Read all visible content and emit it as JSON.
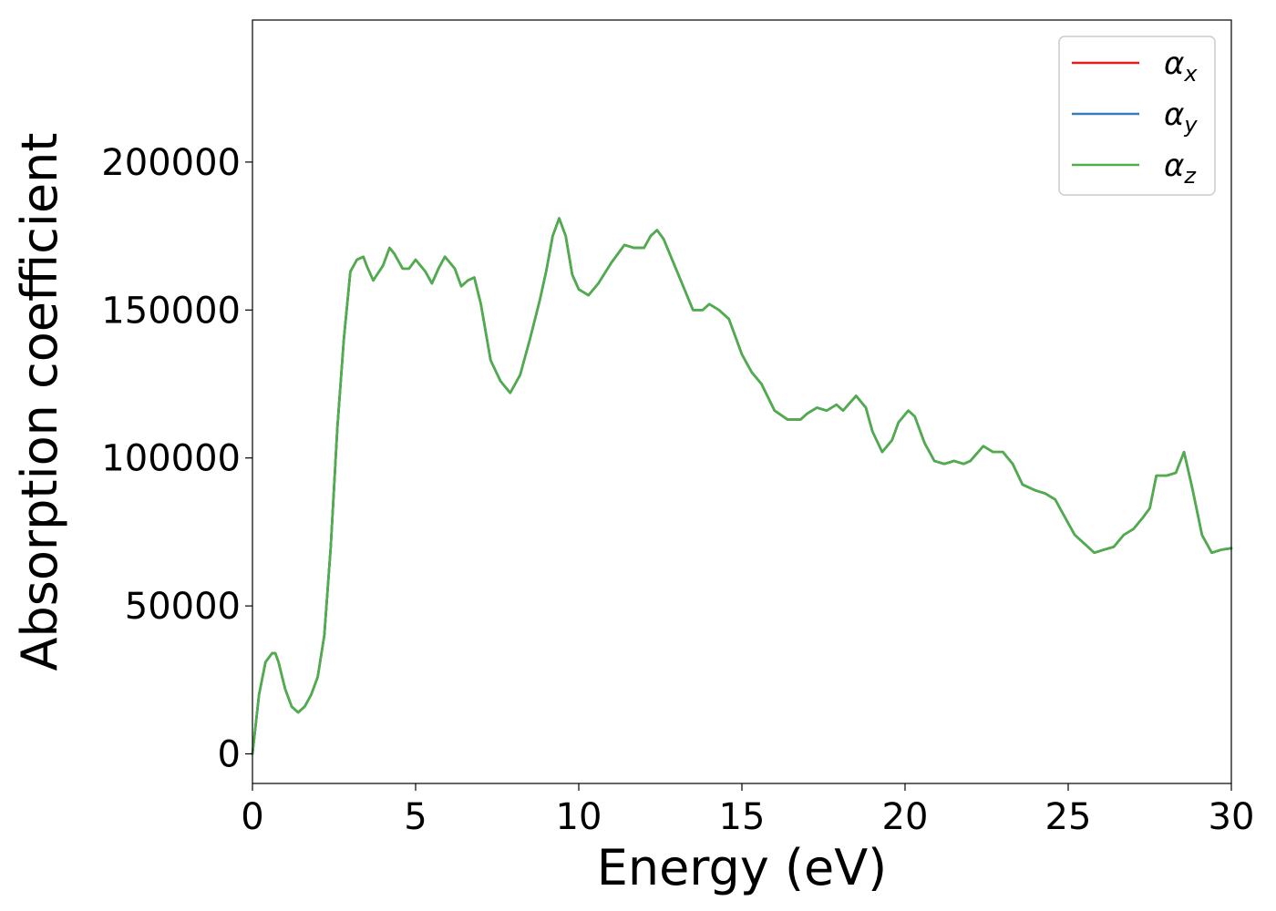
{
  "chart_data": {
    "type": "line",
    "xlabel": "Energy (eV)",
    "ylabel": "Absorption coefficient",
    "xlim": [
      0,
      30
    ],
    "ylim": [
      -10000,
      248000
    ],
    "xticks": [
      0,
      5,
      10,
      15,
      20,
      25,
      30
    ],
    "yticks": [
      0,
      50000,
      100000,
      150000,
      200000
    ],
    "grid": false,
    "legend_position": "top-right",
    "legend": [
      {
        "symbol": "α",
        "sub": "x",
        "color": "#e41a1c"
      },
      {
        "symbol": "α",
        "sub": "y",
        "color": "#377eb8"
      },
      {
        "symbol": "α",
        "sub": "z",
        "color": "#4daf4a"
      }
    ],
    "x": [
      0,
      0.2,
      0.4,
      0.6,
      0.7,
      0.8,
      1.0,
      1.2,
      1.4,
      1.6,
      1.8,
      2.0,
      2.2,
      2.4,
      2.6,
      2.8,
      3.0,
      3.2,
      3.4,
      3.5,
      3.7,
      4.0,
      4.2,
      4.35,
      4.6,
      4.8,
      5.0,
      5.3,
      5.5,
      5.7,
      5.9,
      6.2,
      6.4,
      6.6,
      6.8,
      7.0,
      7.3,
      7.6,
      7.9,
      8.2,
      8.5,
      8.8,
      9.0,
      9.2,
      9.4,
      9.6,
      9.8,
      10.0,
      10.3,
      10.6,
      11.0,
      11.4,
      11.7,
      12.0,
      12.2,
      12.4,
      12.6,
      12.9,
      13.2,
      13.5,
      13.8,
      14.0,
      14.3,
      14.6,
      15.0,
      15.3,
      15.6,
      16.0,
      16.4,
      16.8,
      17.0,
      17.3,
      17.6,
      17.9,
      18.1,
      18.5,
      18.8,
      19.0,
      19.3,
      19.6,
      19.8,
      20.1,
      20.3,
      20.6,
      20.9,
      21.2,
      21.5,
      21.8,
      22.0,
      22.4,
      22.7,
      23.0,
      23.3,
      23.6,
      24.0,
      24.3,
      24.6,
      24.9,
      25.2,
      25.5,
      25.8,
      26.1,
      26.4,
      26.7,
      27.0,
      27.3,
      27.5,
      27.7,
      28.0,
      28.3,
      28.55,
      28.8,
      29.1,
      29.4,
      29.7,
      30.0
    ],
    "series": [
      {
        "values": [
          0,
          20000,
          31000,
          34000,
          34000,
          31000,
          22000,
          16000,
          14000,
          16000,
          20000,
          26000,
          40000,
          70000,
          110000,
          140000,
          163000,
          167000,
          168000,
          165000,
          160000,
          165000,
          171000,
          169000,
          164000,
          164000,
          167000,
          163000,
          159000,
          164000,
          168000,
          164000,
          158000,
          160000,
          161000,
          152000,
          133000,
          126000,
          122000,
          128000,
          140000,
          153000,
          163000,
          175000,
          181000,
          175000,
          162000,
          157000,
          155000,
          159000,
          166000,
          172000,
          171000,
          171000,
          175000,
          177000,
          174000,
          166000,
          158000,
          150000,
          150000,
          152000,
          150000,
          147000,
          135000,
          129000,
          125000,
          116000,
          113000,
          113000,
          115000,
          117000,
          116000,
          118000,
          116000,
          121000,
          117000,
          109000,
          102000,
          106000,
          112000,
          116000,
          114000,
          105000,
          99000,
          98000,
          99000,
          98000,
          99000,
          104000,
          102000,
          102000,
          98000,
          91000,
          89000,
          88000,
          86000,
          80000,
          74000,
          71000,
          68000,
          69000,
          70000,
          74000,
          76000,
          80000,
          83000,
          94000,
          94000,
          95000,
          102000,
          90000,
          74000,
          68000,
          69000,
          69500
        ]
      },
      {
        "values": [
          0,
          20000,
          31000,
          34000,
          34000,
          31000,
          22000,
          16000,
          14000,
          16000,
          20000,
          26000,
          40000,
          70000,
          110000,
          140000,
          163000,
          167000,
          168000,
          165000,
          160000,
          165000,
          171000,
          169000,
          164000,
          164000,
          167000,
          163000,
          159000,
          164000,
          168000,
          164000,
          158000,
          160000,
          161000,
          152000,
          133000,
          126000,
          122000,
          128000,
          140000,
          153000,
          163000,
          175000,
          181000,
          175000,
          162000,
          157000,
          155000,
          159000,
          166000,
          172000,
          171000,
          171000,
          175000,
          177000,
          174000,
          166000,
          158000,
          150000,
          150000,
          152000,
          150000,
          147000,
          135000,
          129000,
          125000,
          116000,
          113000,
          113000,
          115000,
          117000,
          116000,
          118000,
          116000,
          121000,
          117000,
          109000,
          102000,
          106000,
          112000,
          116000,
          114000,
          105000,
          99000,
          98000,
          99000,
          98000,
          99000,
          104000,
          102000,
          102000,
          98000,
          91000,
          89000,
          88000,
          86000,
          80000,
          74000,
          71000,
          68000,
          69000,
          70000,
          74000,
          76000,
          80000,
          83000,
          94000,
          94000,
          95000,
          102000,
          90000,
          74000,
          68000,
          69000,
          69500
        ]
      },
      {
        "values": [
          0,
          20000,
          31000,
          34000,
          34000,
          31000,
          22000,
          16000,
          14000,
          16000,
          20000,
          26000,
          40000,
          70000,
          110000,
          140000,
          163000,
          167000,
          168000,
          165000,
          160000,
          165000,
          171000,
          169000,
          164000,
          164000,
          167000,
          163000,
          159000,
          164000,
          168000,
          164000,
          158000,
          160000,
          161000,
          152000,
          133000,
          126000,
          122000,
          128000,
          140000,
          153000,
          163000,
          175000,
          181000,
          175000,
          162000,
          157000,
          155000,
          159000,
          166000,
          172000,
          171000,
          171000,
          175000,
          177000,
          174000,
          166000,
          158000,
          150000,
          150000,
          152000,
          150000,
          147000,
          135000,
          129000,
          125000,
          116000,
          113000,
          113000,
          115000,
          117000,
          116000,
          118000,
          116000,
          121000,
          117000,
          109000,
          102000,
          106000,
          112000,
          116000,
          114000,
          105000,
          99000,
          98000,
          99000,
          98000,
          99000,
          104000,
          102000,
          102000,
          98000,
          91000,
          89000,
          88000,
          86000,
          80000,
          74000,
          71000,
          68000,
          69000,
          70000,
          74000,
          76000,
          80000,
          83000,
          94000,
          94000,
          95000,
          102000,
          90000,
          74000,
          68000,
          69000,
          69500
        ]
      }
    ]
  }
}
